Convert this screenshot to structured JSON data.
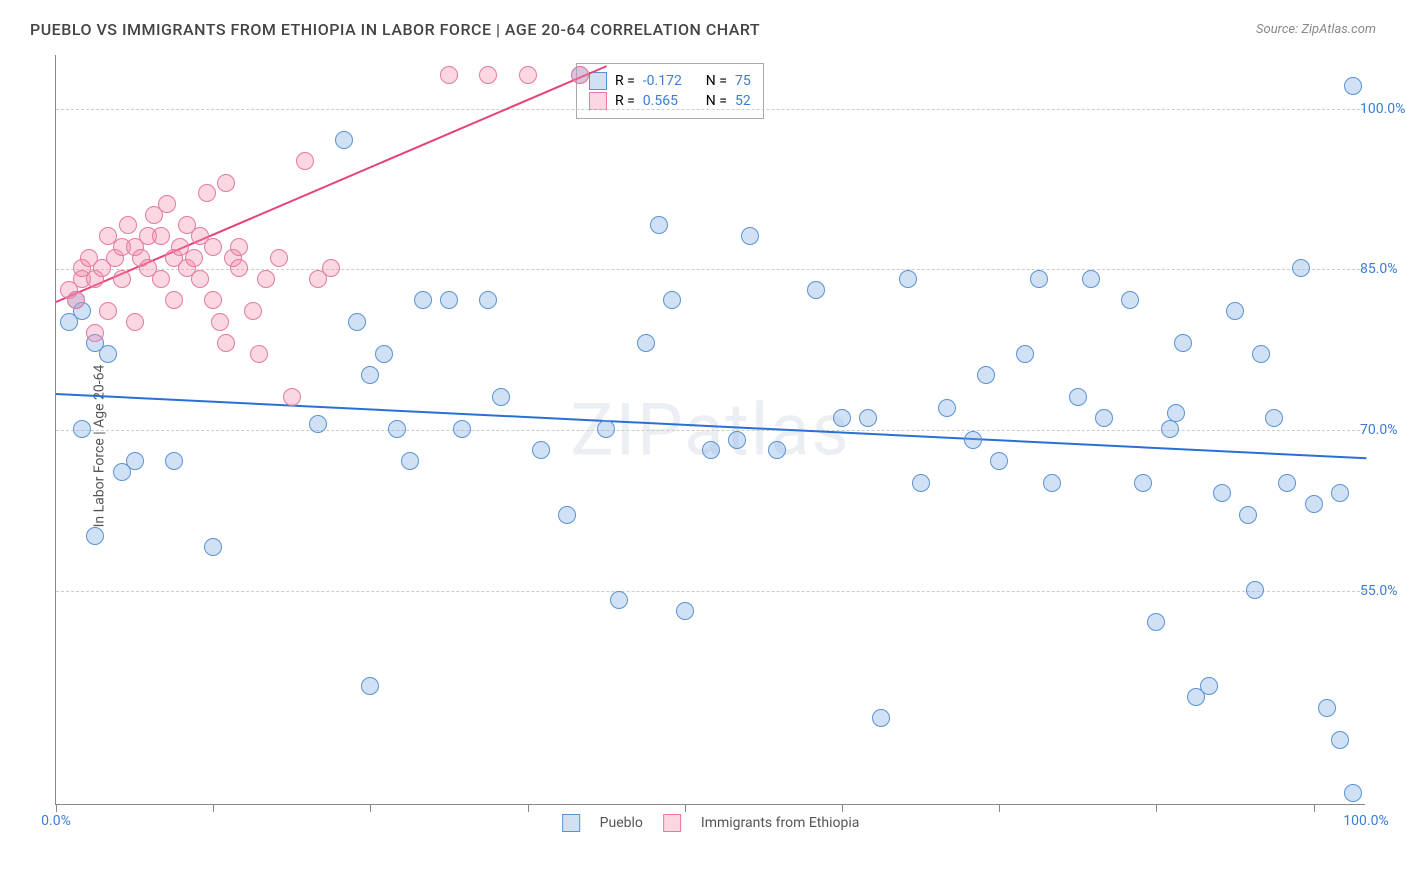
{
  "title": "PUEBLO VS IMMIGRANTS FROM ETHIOPIA IN LABOR FORCE | AGE 20-64 CORRELATION CHART",
  "source": "Source: ZipAtlas.com",
  "ylabel": "In Labor Force | Age 20-64",
  "watermark": "ZIPatlas",
  "chart": {
    "type": "scatter",
    "xlim": [
      0,
      100
    ],
    "ylim": [
      35,
      105
    ],
    "background_color": "#ffffff",
    "grid_color": "#cccccc",
    "axis_color": "#888888",
    "tick_color": "#3b7dd8",
    "yticks": [
      55.0,
      70.0,
      85.0,
      100.0
    ],
    "ytick_labels": [
      "55.0%",
      "70.0%",
      "85.0%",
      "100.0%"
    ],
    "xticks_minor": [
      0,
      12,
      24,
      36,
      48,
      60,
      72,
      84,
      96
    ],
    "xtick_labels": {
      "0": "0.0%",
      "100": "100.0%"
    },
    "marker_radius": 9,
    "marker_stroke_width": 1.5,
    "line_width": 2,
    "series": [
      {
        "name": "Pueblo",
        "fill": "rgba(120, 170, 230, 0.35)",
        "stroke": "#5a93d3",
        "line_color": "#2a6fd6",
        "R": "-0.172",
        "N": "75",
        "trend": {
          "x1": 0,
          "y1": 73.5,
          "x2": 100,
          "y2": 67.5
        },
        "points": [
          [
            1,
            80
          ],
          [
            2,
            81
          ],
          [
            3,
            78
          ],
          [
            4,
            77
          ],
          [
            2,
            70
          ],
          [
            5,
            66
          ],
          [
            6,
            67
          ],
          [
            9,
            67
          ],
          [
            3,
            60
          ],
          [
            12,
            59
          ],
          [
            20,
            70.5
          ],
          [
            22,
            97
          ],
          [
            23,
            80
          ],
          [
            24,
            75
          ],
          [
            25,
            77
          ],
          [
            26,
            70
          ],
          [
            27,
            67
          ],
          [
            24,
            46
          ],
          [
            28,
            82
          ],
          [
            30,
            82
          ],
          [
            31,
            70
          ],
          [
            33,
            82
          ],
          [
            34,
            73
          ],
          [
            37,
            68
          ],
          [
            39,
            62
          ],
          [
            40,
            103
          ],
          [
            42,
            70
          ],
          [
            43,
            54
          ],
          [
            45,
            78
          ],
          [
            46,
            89
          ],
          [
            47,
            82
          ],
          [
            48,
            53
          ],
          [
            50,
            68
          ],
          [
            52,
            69
          ],
          [
            53,
            88
          ],
          [
            55,
            68
          ],
          [
            58,
            83
          ],
          [
            60,
            71
          ],
          [
            62,
            71
          ],
          [
            63,
            43
          ],
          [
            65,
            84
          ],
          [
            66,
            65
          ],
          [
            68,
            72
          ],
          [
            70,
            69
          ],
          [
            71,
            75
          ],
          [
            72,
            67
          ],
          [
            74,
            77
          ],
          [
            75,
            84
          ],
          [
            76,
            65
          ],
          [
            78,
            73
          ],
          [
            79,
            84
          ],
          [
            80,
            71
          ],
          [
            82,
            82
          ],
          [
            83,
            65
          ],
          [
            84,
            52
          ],
          [
            85,
            70
          ],
          [
            86,
            78
          ],
          [
            87,
            45
          ],
          [
            88,
            46
          ],
          [
            89,
            64
          ],
          [
            90,
            81
          ],
          [
            91,
            62
          ],
          [
            92,
            77
          ],
          [
            93,
            71
          ],
          [
            94,
            65
          ],
          [
            95,
            85
          ],
          [
            96,
            63
          ],
          [
            97,
            44
          ],
          [
            98,
            64
          ],
          [
            98,
            41
          ],
          [
            99,
            102
          ],
          [
            99,
            36
          ],
          [
            91.5,
            55
          ],
          [
            85.5,
            71.5
          ],
          [
            1.5,
            82
          ]
        ]
      },
      {
        "name": "Immigrants from Ethiopia",
        "fill": "rgba(240, 140, 170, 0.35)",
        "stroke": "#e77aa0",
        "line_color": "#e6427a",
        "R": "0.565",
        "N": "52",
        "trend": {
          "x1": 0,
          "y1": 82,
          "x2": 42,
          "y2": 104
        },
        "points": [
          [
            1,
            83
          ],
          [
            1.5,
            82
          ],
          [
            2,
            84
          ],
          [
            2,
            85
          ],
          [
            2.5,
            86
          ],
          [
            3,
            84
          ],
          [
            3,
            79
          ],
          [
            3.5,
            85
          ],
          [
            4,
            88
          ],
          [
            4,
            81
          ],
          [
            4.5,
            86
          ],
          [
            5,
            87
          ],
          [
            5,
            84
          ],
          [
            5.5,
            89
          ],
          [
            6,
            87
          ],
          [
            6,
            80
          ],
          [
            6.5,
            86
          ],
          [
            7,
            88
          ],
          [
            7,
            85
          ],
          [
            7.5,
            90
          ],
          [
            8,
            88
          ],
          [
            8,
            84
          ],
          [
            8.5,
            91
          ],
          [
            9,
            86
          ],
          [
            9,
            82
          ],
          [
            9.5,
            87
          ],
          [
            10,
            89
          ],
          [
            10,
            85
          ],
          [
            10.5,
            86
          ],
          [
            11,
            88
          ],
          [
            11,
            84
          ],
          [
            11.5,
            92
          ],
          [
            12,
            82
          ],
          [
            12,
            87
          ],
          [
            12.5,
            80
          ],
          [
            13,
            93
          ],
          [
            13,
            78
          ],
          [
            13.5,
            86
          ],
          [
            14,
            85
          ],
          [
            14,
            87
          ],
          [
            15,
            81
          ],
          [
            15.5,
            77
          ],
          [
            16,
            84
          ],
          [
            17,
            86
          ],
          [
            18,
            73
          ],
          [
            19,
            95
          ],
          [
            20,
            84
          ],
          [
            21,
            85
          ],
          [
            30,
            103
          ],
          [
            33,
            103
          ],
          [
            36,
            103
          ],
          [
            40,
            103
          ]
        ]
      }
    ]
  },
  "legend": {
    "stat_labels": {
      "r": "R =",
      "n": "N ="
    },
    "value_color": "#3b7dd8",
    "bottom": [
      {
        "label": "Pueblo",
        "fill": "rgba(120, 170, 230, 0.35)",
        "stroke": "#5a93d3"
      },
      {
        "label": "Immigrants from Ethiopia",
        "fill": "rgba(240, 140, 170, 0.35)",
        "stroke": "#e77aa0"
      }
    ]
  }
}
